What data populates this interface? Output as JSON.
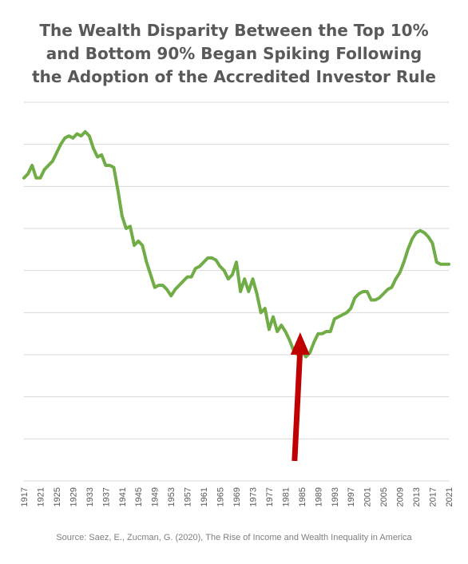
{
  "title_lines": [
    "The Wealth Disparity Between the Top 10%",
    "and Bottom 90% Began Spiking Following",
    "the Adoption of the Accredited Investor Rule"
  ],
  "source": "Source: Saez, E.,  Zucman, G. (2020), The Rise of Income and Wealth Inequality in America",
  "colors": {
    "line": "#70ad47",
    "arrow": "#c00000",
    "grid": "#d9d9d9",
    "text": "#595959"
  },
  "chart_data": {
    "type": "line",
    "title": "The Wealth Disparity Between the Top 10% and Bottom 90% Began Spiking Following the Adoption of the Accredited Investor Rule",
    "xlabel": "",
    "ylabel": "",
    "xlim": [
      1917,
      2021
    ],
    "ylim": [
      0,
      9
    ],
    "grid": true,
    "y_tick_labels_shown": false,
    "x_tick_labels": [
      "1917",
      "1921",
      "1925",
      "1929",
      "1933",
      "1937",
      "1941",
      "1945",
      "1949",
      "1953",
      "1957",
      "1961",
      "1965",
      "1969",
      "1973",
      "1977",
      "1981",
      "1985",
      "1989",
      "1993",
      "1997",
      "2001",
      "2005",
      "2009",
      "2013",
      "2017",
      "2021"
    ],
    "annotations": [
      {
        "type": "arrow",
        "color": "#c00000",
        "points_to_year": 1985,
        "direction": "up"
      }
    ],
    "series": [
      {
        "x": [
          1917,
          1918,
          1919,
          1920,
          1921,
          1922,
          1923,
          1924,
          1925,
          1926,
          1927,
          1928,
          1929,
          1930,
          1931,
          1932,
          1933,
          1934,
          1935,
          1936,
          1937,
          1938,
          1939,
          1940,
          1941,
          1942,
          1943,
          1944,
          1945,
          1946,
          1947,
          1948,
          1949,
          1950,
          1951,
          1952,
          1953,
          1954,
          1955,
          1956,
          1957,
          1958,
          1959,
          1960,
          1961,
          1962,
          1963,
          1964,
          1965,
          1966,
          1967,
          1968,
          1969,
          1970,
          1971,
          1972,
          1973,
          1974,
          1975,
          1976,
          1977,
          1978,
          1979,
          1980,
          1981,
          1982,
          1983,
          1984,
          1985,
          1986,
          1987,
          1988,
          1989,
          1990,
          1991,
          1992,
          1993,
          1994,
          1995,
          1996,
          1997,
          1998,
          1999,
          2000,
          2001,
          2002,
          2003,
          2004,
          2005,
          2006,
          2007,
          2008,
          2009,
          2010,
          2011,
          2012,
          2013,
          2014,
          2015,
          2016,
          2017,
          2018,
          2019,
          2020,
          2021
        ],
        "values": [
          7.2,
          7.3,
          7.5,
          7.2,
          7.2,
          7.4,
          7.5,
          7.6,
          7.8,
          8.0,
          8.15,
          8.2,
          8.15,
          8.25,
          8.2,
          8.3,
          8.2,
          7.9,
          7.7,
          7.75,
          7.5,
          7.5,
          7.45,
          6.9,
          6.3,
          6.0,
          6.05,
          5.6,
          5.7,
          5.6,
          5.2,
          4.9,
          4.6,
          4.65,
          4.65,
          4.55,
          4.4,
          4.55,
          4.65,
          4.75,
          4.85,
          4.85,
          5.05,
          5.1,
          5.2,
          5.3,
          5.3,
          5.25,
          5.1,
          5.0,
          4.8,
          4.9,
          5.2,
          4.5,
          4.8,
          4.5,
          4.8,
          4.45,
          4.0,
          4.1,
          3.6,
          3.9,
          3.55,
          3.7,
          3.55,
          3.35,
          3.1,
          3.0,
          3.1,
          2.95,
          3.05,
          3.3,
          3.5,
          3.5,
          3.55,
          3.55,
          3.85,
          3.9,
          3.95,
          4.0,
          4.1,
          4.35,
          4.45,
          4.5,
          4.5,
          4.3,
          4.3,
          4.35,
          4.45,
          4.55,
          4.6,
          4.8,
          4.95,
          5.2,
          5.5,
          5.75,
          5.9,
          5.95,
          5.9,
          5.8,
          5.65,
          5.2,
          5.15,
          5.15,
          5.15
        ]
      }
    ]
  }
}
